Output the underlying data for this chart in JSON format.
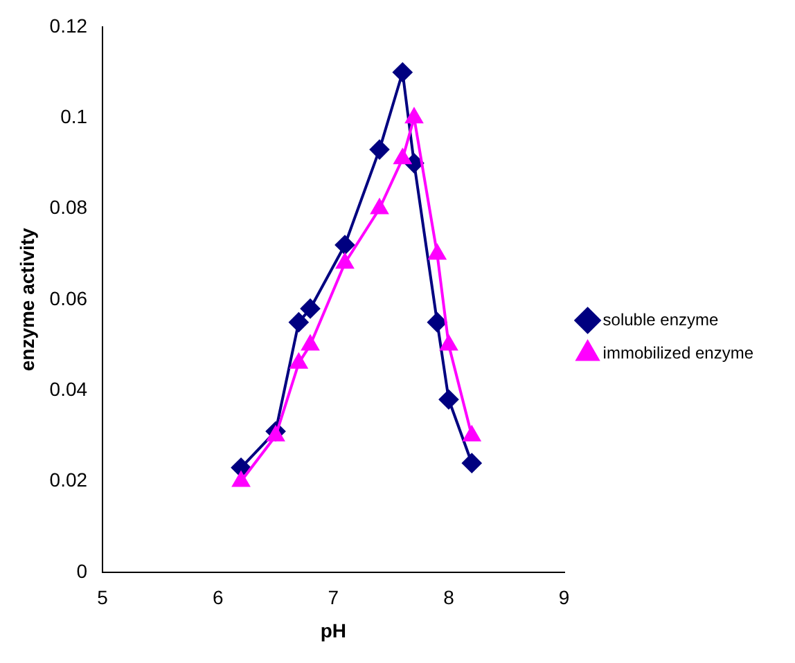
{
  "chart_data": {
    "type": "line",
    "xlabel": "pH",
    "ylabel": "enzyme activity",
    "xlim": [
      5,
      9
    ],
    "xticks": [
      5,
      6,
      7,
      8,
      9
    ],
    "ylim": [
      0,
      0.12
    ],
    "yticks": [
      0,
      0.02,
      0.04,
      0.06,
      0.08,
      0.1,
      0.12
    ],
    "grid": false,
    "legend": "right",
    "line_style": "solid",
    "series": [
      {
        "name": "soluble enzyme",
        "color": "#000080",
        "marker": "diamond",
        "x": [
          6.2,
          6.5,
          6.7,
          6.8,
          7.1,
          7.4,
          7.6,
          7.7,
          7.9,
          8.0,
          8.2
        ],
        "values": [
          0.023,
          0.031,
          0.055,
          0.058,
          0.072,
          0.093,
          0.11,
          0.09,
          0.055,
          0.038,
          0.024
        ]
      },
      {
        "name": "immobilized enzyme",
        "color": "#ff00ff",
        "marker": "triangle",
        "x": [
          6.2,
          6.5,
          6.7,
          6.8,
          7.1,
          7.4,
          7.6,
          7.7,
          7.9,
          8.0,
          8.2
        ],
        "values": [
          0.02,
          0.03,
          0.046,
          0.05,
          0.068,
          0.08,
          0.091,
          0.1,
          0.07,
          0.05,
          0.03
        ]
      }
    ]
  }
}
